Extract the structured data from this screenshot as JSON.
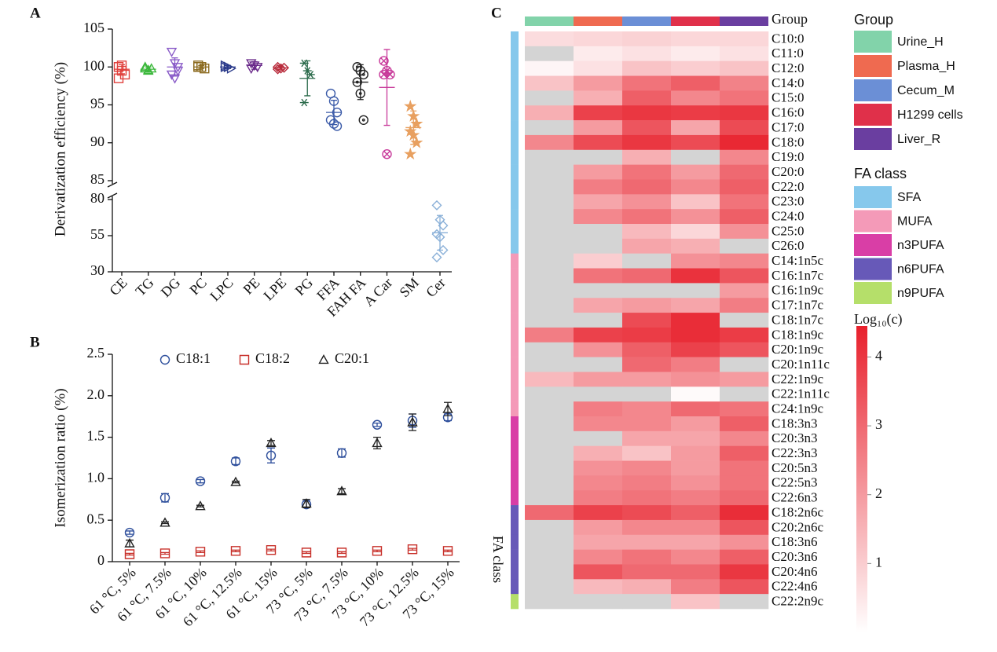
{
  "chart_data": [
    {
      "type": "dot",
      "panel": "A",
      "ylabel": "Derivatization efficiency (%)",
      "categories": [
        "CE",
        "TG",
        "DG",
        "PC",
        "LPC",
        "PE",
        "LPE",
        "PG",
        "FFA",
        "FAH FA",
        "A Car",
        "SM",
        "Cer"
      ],
      "values": [
        [
          100,
          99.5,
          99,
          98.5,
          100.2
        ],
        [
          99.8,
          99.5,
          99.8,
          100,
          99.6
        ],
        [
          102,
          100.5,
          100,
          99,
          98.5,
          99.5
        ],
        [
          100,
          100,
          99.8,
          100.2,
          100
        ],
        [
          100.2,
          100,
          99.8,
          100,
          100
        ],
        [
          100.5,
          100.2,
          100,
          99.8
        ],
        [
          100,
          99.8,
          99.9,
          99.7
        ],
        [
          100.5,
          99.5,
          99,
          95.3
        ],
        [
          96.5,
          95.5,
          94,
          93,
          92.5,
          92.2
        ],
        [
          100,
          99.5,
          99,
          98,
          96.5,
          93
        ],
        [
          100.8,
          99.5,
          99,
          99,
          88.5
        ],
        [
          94.8,
          93.5,
          92.5,
          91.5,
          91,
          90,
          88.5
        ],
        [
          76,
          66,
          62,
          56,
          54,
          45,
          40
        ]
      ],
      "means": [
        99.7,
        99.7,
        100,
        100,
        100,
        100.2,
        99.9,
        98.5,
        94,
        98,
        97.3,
        92,
        57
      ],
      "errors": [
        0.6,
        0.3,
        1.2,
        0.2,
        0.2,
        0.5,
        0.2,
        2.3,
        1.6,
        2.3,
        5,
        2.2,
        12
      ],
      "colors": [
        "#e0403c",
        "#3cb83c",
        "#8a5cc8",
        "#8b6a1e",
        "#2a3a8a",
        "#6a2a8a",
        "#b82a3a",
        "#2a6a4a",
        "#3a5aa8",
        "#222222",
        "#c83a9a",
        "#e8a060",
        "#8ab0d8"
      ],
      "markers": [
        "square",
        "triangle",
        "triangle-down",
        "square",
        "triangle-right",
        "triangle-down",
        "diamond",
        "asterisk",
        "circle",
        "circle-dot",
        "circle-x",
        "star",
        "diamond"
      ],
      "ylim": [
        85,
        105
      ],
      "yticks": [
        85,
        90,
        95,
        100,
        105
      ],
      "y_lower_lim": [
        30,
        80
      ],
      "y_lower_ticks": [
        30,
        55,
        80
      ],
      "axis_break": true
    },
    {
      "type": "scatter_error",
      "panel": "B",
      "ylabel": "Isomerization ratio (%)",
      "categories": [
        "61 °C, 5%",
        "61 °C, 7.5%",
        "61 °C, 10%",
        "61 °C, 12.5%",
        "61 °C, 15%",
        "73 °C, 5%",
        "73 °C, 7.5%",
        "73 °C, 10%",
        "73 °C, 12.5%",
        "73 °C, 15%"
      ],
      "series": [
        {
          "name": "C18:1",
          "color": "#2e4f9c",
          "marker": "circle",
          "values": [
            0.35,
            0.77,
            0.97,
            1.21,
            1.28,
            0.69,
            1.31,
            1.65,
            1.7,
            1.74
          ],
          "errors": [
            0.02,
            0.05,
            0.02,
            0.04,
            0.09,
            0.04,
            0.05,
            0.02,
            0.08,
            0.04
          ]
        },
        {
          "name": "C18:2",
          "color": "#c8302a",
          "marker": "square",
          "values": [
            0.09,
            0.1,
            0.12,
            0.13,
            0.14,
            0.11,
            0.11,
            0.13,
            0.15,
            0.13
          ],
          "errors": [
            0.01,
            0.01,
            0.01,
            0.01,
            0.01,
            0.01,
            0.01,
            0.01,
            0.01,
            0.01
          ]
        },
        {
          "name": "C20:1",
          "color": "#222222",
          "marker": "triangle",
          "values": [
            0.22,
            0.47,
            0.67,
            0.96,
            1.43,
            0.7,
            0.85,
            1.43,
            1.68,
            1.84
          ],
          "errors": [
            0.04,
            0.01,
            0.01,
            0.01,
            0.03,
            0.05,
            0.03,
            0.07,
            0.1,
            0.08
          ]
        }
      ],
      "ylim": [
        0,
        2.5
      ],
      "yticks": [
        0,
        0.5,
        {
          "value": 1,
          "label": "1.0"
        },
        1.5,
        {
          "value": 2,
          "label": "2.0"
        },
        2.5
      ],
      "legend": "top"
    },
    {
      "type": "heatmap",
      "panel": "C",
      "groups": [
        "Urine_H",
        "Plasma_H",
        "Cecum_M",
        "H1299 cells",
        "Liver_R"
      ],
      "group_colors": [
        "#82d3aa",
        "#ef6a50",
        "#6b8fd6",
        "#e0304a",
        "#6a3ea0"
      ],
      "group_title": "Group",
      "class_title": "FA class",
      "classes": [
        "SFA",
        "MUFA",
        "n3PUFA",
        "n6PUFA",
        "n9PUFA"
      ],
      "class_colors": [
        "#86c8ec",
        "#f49ab8",
        "#d93ea6",
        "#6759b8",
        "#b5df6a"
      ],
      "rows": [
        "C10:0",
        "C11:0",
        "C12:0",
        "C14:0",
        "C15:0",
        "C16:0",
        "C17:0",
        "C18:0",
        "C19:0",
        "C20:0",
        "C22:0",
        "C23:0",
        "C24:0",
        "C25:0",
        "C26:0",
        "C14:1n5c",
        "C16:1n7c",
        "C16:1n9c",
        "C17:1n7c",
        "C18:1n7c",
        "C18:1n9c",
        "C20:1n9c",
        "C20:1n11c",
        "C22:1n9c",
        "C22:1n11c",
        "C24:1n9c",
        "C18:3n3",
        "C20:3n3",
        "C22:3n3",
        "C20:5n3",
        "C22:5n3",
        "C22:6n3",
        "C18:2n6c",
        "C20:2n6c",
        "C18:3n6",
        "C20:3n6",
        "C20:4n6",
        "C22:4n6",
        "C22:2n9c"
      ],
      "row_class": [
        "SFA",
        "SFA",
        "SFA",
        "SFA",
        "SFA",
        "SFA",
        "SFA",
        "SFA",
        "SFA",
        "SFA",
        "SFA",
        "SFA",
        "SFA",
        "SFA",
        "SFA",
        "MUFA",
        "MUFA",
        "MUFA",
        "MUFA",
        "MUFA",
        "MUFA",
        "MUFA",
        "MUFA",
        "MUFA",
        "MUFA",
        "MUFA",
        "n3PUFA",
        "n3PUFA",
        "n3PUFA",
        "n3PUFA",
        "n3PUFA",
        "n3PUFA",
        "n6PUFA",
        "n6PUFA",
        "n6PUFA",
        "n6PUFA",
        "n6PUFA",
        "n6PUFA",
        "n9PUFA"
      ],
      "values": [
        [
          0.7,
          0.8,
          0.9,
          0.8,
          0.8
        ],
        [
          null,
          0.4,
          0.6,
          0.4,
          0.6
        ],
        [
          0.2,
          0.6,
          1.2,
          1.0,
          1.2
        ],
        [
          1.2,
          2.0,
          2.8,
          3.2,
          2.5
        ],
        [
          null,
          1.6,
          3.2,
          2.4,
          2.8
        ],
        [
          1.6,
          3.8,
          4.0,
          3.9,
          4.0
        ],
        [
          null,
          2.0,
          3.4,
          1.8,
          3.6
        ],
        [
          2.4,
          3.6,
          4.0,
          3.6,
          4.3
        ],
        [
          null,
          null,
          1.6,
          null,
          2.4
        ],
        [
          null,
          2.0,
          2.8,
          2.0,
          3.0
        ],
        [
          null,
          2.6,
          3.0,
          2.4,
          3.2
        ],
        [
          null,
          1.8,
          2.2,
          1.2,
          2.8
        ],
        [
          null,
          2.4,
          2.8,
          2.2,
          3.2
        ],
        [
          null,
          null,
          1.4,
          0.8,
          2.2
        ],
        [
          null,
          null,
          1.8,
          1.6,
          null
        ],
        [
          null,
          1.0,
          null,
          2.2,
          2.4
        ],
        [
          null,
          2.8,
          3.0,
          4.1,
          3.4
        ],
        [
          null,
          null,
          null,
          null,
          2.0
        ],
        [
          null,
          1.8,
          2.0,
          1.8,
          2.6
        ],
        [
          null,
          null,
          3.6,
          4.2,
          null
        ],
        [
          2.6,
          3.8,
          3.9,
          4.2,
          3.9
        ],
        [
          null,
          2.2,
          3.2,
          3.8,
          3.4
        ],
        [
          null,
          null,
          3.0,
          2.6,
          null
        ],
        [
          1.4,
          2.0,
          2.0,
          2.2,
          2.0
        ],
        [
          null,
          null,
          null,
          0.1,
          null
        ],
        [
          null,
          2.6,
          2.4,
          3.0,
          2.8
        ],
        [
          null,
          2.4,
          2.4,
          2.0,
          3.2
        ],
        [
          null,
          null,
          1.8,
          1.8,
          2.4
        ],
        [
          null,
          1.6,
          1.2,
          2.0,
          3.2
        ],
        [
          null,
          2.2,
          2.4,
          2.0,
          2.8
        ],
        [
          null,
          2.4,
          2.6,
          2.2,
          2.8
        ],
        [
          null,
          2.6,
          2.8,
          2.6,
          3.0
        ],
        [
          3.0,
          3.8,
          3.6,
          3.2,
          4.2
        ],
        [
          null,
          2.0,
          2.4,
          2.4,
          3.4
        ],
        [
          null,
          1.8,
          1.8,
          1.8,
          2.2
        ],
        [
          null,
          2.4,
          2.8,
          2.4,
          3.2
        ],
        [
          null,
          3.4,
          3.0,
          3.0,
          4.0
        ],
        [
          null,
          1.4,
          1.6,
          2.6,
          3.4
        ],
        [
          null,
          null,
          null,
          1.2,
          null
        ]
      ],
      "clim": [
        0,
        4.45
      ],
      "colorbar_title": "Log₁₀(c)",
      "colorbar_ticks": [
        1,
        2,
        3,
        4
      ],
      "missing_color": "#d4d4d4",
      "low_color": "#ffffff",
      "high_color": "#e8202c"
    }
  ]
}
